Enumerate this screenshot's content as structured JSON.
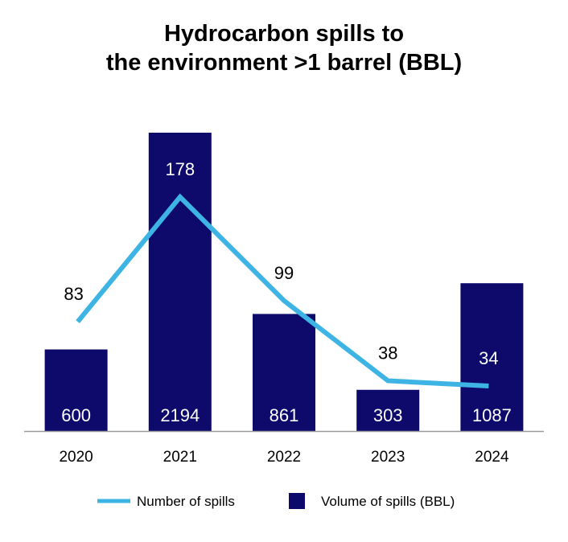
{
  "chart_data": {
    "type": "bar",
    "title_lines": [
      "Hydrocarbon spills to",
      "the environment >1 barrel (BBL)"
    ],
    "categories": [
      "2020",
      "2021",
      "2022",
      "2023",
      "2024"
    ],
    "series": [
      {
        "name": "Volume of spills (BBL)",
        "kind": "bar",
        "color": "#0d0a6b",
        "values": [
          600,
          2194,
          861,
          303,
          1087
        ]
      },
      {
        "name": "Number of spills",
        "kind": "line",
        "color": "#3db4e3",
        "values": [
          83,
          178,
          99,
          38,
          34
        ]
      }
    ],
    "legend_position": "bottom",
    "grid": false,
    "axis_color": "#9a9a9a"
  }
}
